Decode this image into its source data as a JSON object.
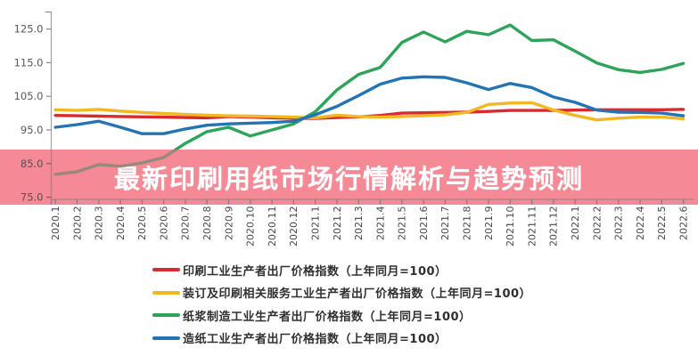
{
  "banner": {
    "title": "最新印刷用纸市场行情解析与趋势预测",
    "bg_color": "#f47c8a",
    "text_color": "#ffffff"
  },
  "chart_data": {
    "type": "line",
    "title": "",
    "xlabel": "",
    "ylabel": "",
    "legend_position": "bottom",
    "grid": false,
    "x": [
      "2020.1",
      "2020.2",
      "2020.3",
      "2020.4",
      "2020.5",
      "2020.6",
      "2020.7",
      "2020.8",
      "2020.9",
      "2020.10",
      "2020.11",
      "2020.12",
      "2021.1",
      "2021.2",
      "2021.3",
      "2021.4",
      "2021.5",
      "2021.6",
      "2021.7",
      "2021.8",
      "2021.9",
      "2021.10",
      "2021.11",
      "2021.12",
      "2022.1",
      "2022.2",
      "2022.3",
      "2022.4",
      "2022.5",
      "2022.6"
    ],
    "y_ticks": [
      {
        "v": 75,
        "label": "75.0"
      },
      {
        "v": 85,
        "label": "85.0"
      },
      {
        "v": 95,
        "label": "95.0"
      },
      {
        "v": 105,
        "label": "105.0"
      },
      {
        "v": 115,
        "label": "115.0"
      },
      {
        "v": 125,
        "label": "125.0"
      }
    ],
    "ylim": [
      74.3,
      130
    ],
    "series": [
      {
        "label": "印刷工业生产者出厂价格指数（上年同月=100）",
        "color": "#d92b2e",
        "values": [
          99.3,
          99.2,
          99.1,
          99.0,
          98.9,
          98.8,
          98.7,
          98.6,
          99.0,
          98.8,
          98.6,
          98.5,
          98.4,
          98.7,
          98.9,
          99.3,
          100.0,
          100.1,
          100.2,
          100.3,
          100.5,
          100.8,
          100.8,
          100.8,
          100.9,
          101.0,
          101.0,
          101.0,
          101.0,
          101.1
        ]
      },
      {
        "label": "装订及印刷相关服务工业生产者出厂价格指数（上年同月=100）",
        "color": "#f2b824",
        "values": [
          101.0,
          100.8,
          101.1,
          100.6,
          100.2,
          99.9,
          99.6,
          99.4,
          99.2,
          99.1,
          99.0,
          98.8,
          98.6,
          99.4,
          99.0,
          98.8,
          99.0,
          99.2,
          99.5,
          100.2,
          102.6,
          103.0,
          103.1,
          100.9,
          99.3,
          98.0,
          98.5,
          98.8,
          98.8,
          98.3
        ]
      },
      {
        "label": "纸浆制造工业生产者出厂价格指数（上年同月=100）",
        "color": "#2ca558",
        "values": [
          81.8,
          82.6,
          84.7,
          84.2,
          85.2,
          86.8,
          91.0,
          94.5,
          95.8,
          93.2,
          95.0,
          96.8,
          100.4,
          106.9,
          111.5,
          113.6,
          121.0,
          124.1,
          121.2,
          124.3,
          123.3,
          126.2,
          121.6,
          121.8,
          118.4,
          114.9,
          112.9,
          112.1,
          113.0,
          114.8
        ]
      },
      {
        "label": "造纸工业生产者出厂价格指数（上年同月=100）",
        "color": "#2274b5",
        "values": [
          95.8,
          96.6,
          97.6,
          95.8,
          93.9,
          93.9,
          95.3,
          96.4,
          96.8,
          97.0,
          97.2,
          97.6,
          99.5,
          102.0,
          105.2,
          108.6,
          110.4,
          110.8,
          110.6,
          109.0,
          107.0,
          108.8,
          107.6,
          104.8,
          103.2,
          100.9,
          100.3,
          100.2,
          100.0,
          99.2
        ]
      }
    ],
    "style": {
      "axis_color": "#a6a6a6",
      "tick_color": "#8c8c8c",
      "y_label_color": "#595959",
      "x_label_color": "#4a4a4a",
      "muted_line_under_banner": "#97897c"
    }
  }
}
